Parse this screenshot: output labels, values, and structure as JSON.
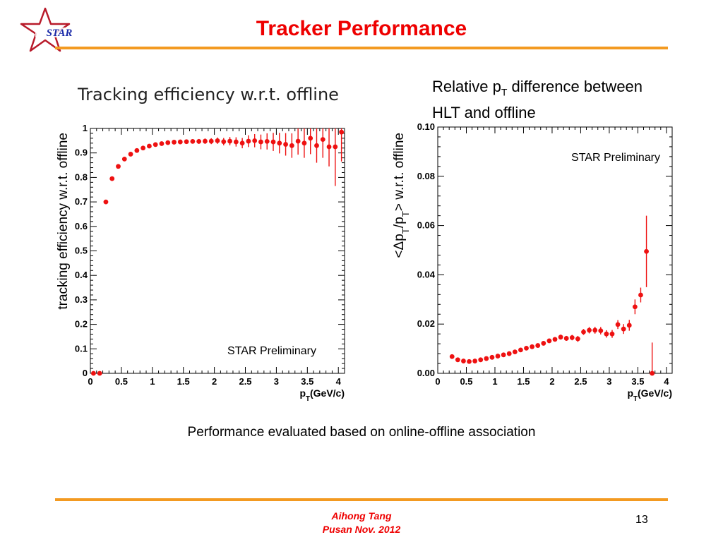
{
  "header": {
    "logo_text": "STAR",
    "title": "Tracker Performance"
  },
  "captions": {
    "right_line1_pre": "Relative p",
    "right_line1_sub": "T",
    "right_line1_post": " difference between",
    "right_line2": "HLT and offline",
    "footer_note": "Performance evaluated based on online-offline association"
  },
  "footer": {
    "author": "Aihong Tang",
    "venue": "Pusan Nov.  2012",
    "page_number": "13"
  },
  "colors": {
    "title": "#ee0000",
    "rule": "#f39a21",
    "marker": "#ee1111",
    "logo_star": "#b81a2a"
  },
  "chart_data": [
    {
      "type": "scatter",
      "title": "Tracking efficiency w.r.t. offline",
      "xlabel": "p_T(GeV/c)",
      "ylabel": "tracking efficiency w.r.t. offline",
      "annotation": "STAR Preliminary",
      "xlim": [
        0,
        4.1
      ],
      "ylim": [
        0,
        1
      ],
      "x_ticks": [
        "0",
        "0.5",
        "1",
        "1.5",
        "2",
        "2.5",
        "3",
        "3.5",
        "4"
      ],
      "y_ticks": [
        "0",
        "0.1",
        "0.2",
        "0.3",
        "0.4",
        "0.5",
        "0.6",
        "0.7",
        "0.8",
        "0.9",
        "1"
      ],
      "grid": false,
      "points": [
        {
          "x": 0.05,
          "y": 0.0,
          "err": 0.0
        },
        {
          "x": 0.15,
          "y": 0.0,
          "err": 0.0
        },
        {
          "x": 0.25,
          "y": 0.7,
          "err": 0.003
        },
        {
          "x": 0.35,
          "y": 0.795,
          "err": 0.003
        },
        {
          "x": 0.45,
          "y": 0.845,
          "err": 0.003
        },
        {
          "x": 0.55,
          "y": 0.875,
          "err": 0.003
        },
        {
          "x": 0.65,
          "y": 0.895,
          "err": 0.004
        },
        {
          "x": 0.75,
          "y": 0.91,
          "err": 0.004
        },
        {
          "x": 0.85,
          "y": 0.92,
          "err": 0.004
        },
        {
          "x": 0.95,
          "y": 0.928,
          "err": 0.005
        },
        {
          "x": 1.05,
          "y": 0.934,
          "err": 0.005
        },
        {
          "x": 1.15,
          "y": 0.938,
          "err": 0.005
        },
        {
          "x": 1.25,
          "y": 0.942,
          "err": 0.006
        },
        {
          "x": 1.35,
          "y": 0.944,
          "err": 0.006
        },
        {
          "x": 1.45,
          "y": 0.945,
          "err": 0.007
        },
        {
          "x": 1.55,
          "y": 0.946,
          "err": 0.008
        },
        {
          "x": 1.65,
          "y": 0.947,
          "err": 0.009
        },
        {
          "x": 1.75,
          "y": 0.947,
          "err": 0.01
        },
        {
          "x": 1.85,
          "y": 0.948,
          "err": 0.011
        },
        {
          "x": 1.95,
          "y": 0.948,
          "err": 0.012
        },
        {
          "x": 2.05,
          "y": 0.95,
          "err": 0.013
        },
        {
          "x": 2.15,
          "y": 0.946,
          "err": 0.015
        },
        {
          "x": 2.25,
          "y": 0.948,
          "err": 0.017
        },
        {
          "x": 2.35,
          "y": 0.945,
          "err": 0.019
        },
        {
          "x": 2.45,
          "y": 0.94,
          "err": 0.021
        },
        {
          "x": 2.55,
          "y": 0.948,
          "err": 0.024
        },
        {
          "x": 2.65,
          "y": 0.95,
          "err": 0.027
        },
        {
          "x": 2.75,
          "y": 0.945,
          "err": 0.03
        },
        {
          "x": 2.85,
          "y": 0.947,
          "err": 0.033
        },
        {
          "x": 2.95,
          "y": 0.945,
          "err": 0.037
        },
        {
          "x": 3.05,
          "y": 0.94,
          "err": 0.042
        },
        {
          "x": 3.15,
          "y": 0.935,
          "err": 0.046
        },
        {
          "x": 3.25,
          "y": 0.93,
          "err": 0.05
        },
        {
          "x": 3.35,
          "y": 0.948,
          "err": 0.055
        },
        {
          "x": 3.45,
          "y": 0.94,
          "err": 0.06
        },
        {
          "x": 3.55,
          "y": 0.96,
          "err": 0.065
        },
        {
          "x": 3.65,
          "y": 0.93,
          "err": 0.07
        },
        {
          "x": 3.75,
          "y": 0.955,
          "err": 0.075
        },
        {
          "x": 3.85,
          "y": 0.925,
          "err": 0.08
        },
        {
          "x": 3.95,
          "y": 0.925,
          "err": 0.16
        },
        {
          "x": 4.05,
          "y": 0.985,
          "err": 0.12
        }
      ]
    },
    {
      "type": "scatter",
      "title": "",
      "xlabel": "p_T(GeV/c)",
      "ylabel": "<Δp_T/p_T> w.r.t. offline",
      "annotation": "STAR Preliminary",
      "xlim": [
        0,
        4.1
      ],
      "ylim": [
        0,
        0.1
      ],
      "x_ticks": [
        "0",
        "0.5",
        "1",
        "1.5",
        "2",
        "2.5",
        "3",
        "3.5",
        "4"
      ],
      "y_ticks": [
        "0.00",
        "0.02",
        "0.04",
        "0.06",
        "0.08",
        "0.10"
      ],
      "grid": false,
      "points": [
        {
          "x": 0.25,
          "y": 0.0068,
          "err": 0.0003
        },
        {
          "x": 0.35,
          "y": 0.0055,
          "err": 0.0003
        },
        {
          "x": 0.45,
          "y": 0.005,
          "err": 0.0003
        },
        {
          "x": 0.55,
          "y": 0.0048,
          "err": 0.0003
        },
        {
          "x": 0.65,
          "y": 0.005,
          "err": 0.0003
        },
        {
          "x": 0.75,
          "y": 0.0055,
          "err": 0.0003
        },
        {
          "x": 0.85,
          "y": 0.006,
          "err": 0.0003
        },
        {
          "x": 0.95,
          "y": 0.0065,
          "err": 0.0004
        },
        {
          "x": 1.05,
          "y": 0.007,
          "err": 0.0004
        },
        {
          "x": 1.15,
          "y": 0.0075,
          "err": 0.0004
        },
        {
          "x": 1.25,
          "y": 0.008,
          "err": 0.0004
        },
        {
          "x": 1.35,
          "y": 0.0087,
          "err": 0.0005
        },
        {
          "x": 1.45,
          "y": 0.0095,
          "err": 0.0005
        },
        {
          "x": 1.55,
          "y": 0.0102,
          "err": 0.0005
        },
        {
          "x": 1.65,
          "y": 0.0108,
          "err": 0.0006
        },
        {
          "x": 1.75,
          "y": 0.0113,
          "err": 0.0007
        },
        {
          "x": 1.85,
          "y": 0.0122,
          "err": 0.0008
        },
        {
          "x": 1.95,
          "y": 0.0132,
          "err": 0.0008
        },
        {
          "x": 2.05,
          "y": 0.0138,
          "err": 0.0009
        },
        {
          "x": 2.15,
          "y": 0.0147,
          "err": 0.001
        },
        {
          "x": 2.25,
          "y": 0.0142,
          "err": 0.001
        },
        {
          "x": 2.35,
          "y": 0.0145,
          "err": 0.0011
        },
        {
          "x": 2.45,
          "y": 0.014,
          "err": 0.0012
        },
        {
          "x": 2.55,
          "y": 0.0168,
          "err": 0.0012
        },
        {
          "x": 2.65,
          "y": 0.0175,
          "err": 0.0013
        },
        {
          "x": 2.75,
          "y": 0.0175,
          "err": 0.0014
        },
        {
          "x": 2.85,
          "y": 0.0173,
          "err": 0.0015
        },
        {
          "x": 2.95,
          "y": 0.016,
          "err": 0.0015
        },
        {
          "x": 3.05,
          "y": 0.016,
          "err": 0.0016
        },
        {
          "x": 3.15,
          "y": 0.0198,
          "err": 0.0018
        },
        {
          "x": 3.25,
          "y": 0.018,
          "err": 0.002
        },
        {
          "x": 3.35,
          "y": 0.0195,
          "err": 0.0022
        },
        {
          "x": 3.45,
          "y": 0.027,
          "err": 0.003
        },
        {
          "x": 3.55,
          "y": 0.0318,
          "err": 0.003
        },
        {
          "x": 3.65,
          "y": 0.0495,
          "err": 0.0145
        },
        {
          "x": 3.75,
          "y": 0.0,
          "err": 0.0125
        }
      ]
    }
  ]
}
